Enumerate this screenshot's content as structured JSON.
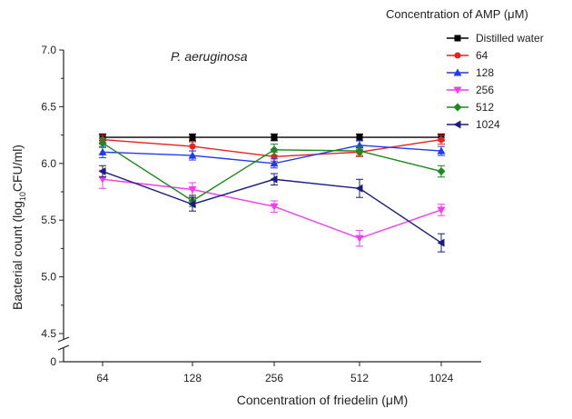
{
  "chart_data": {
    "type": "line",
    "title": "",
    "annotation": "P. aeruginosa",
    "xlabel": "Concentration of friedelin (μM)",
    "ylabel_main": "Bacterial count (log",
    "ylabel_sub": "10",
    "ylabel_end": "CFU/ml)",
    "categories": [
      "64",
      "128",
      "256",
      "512",
      "1024"
    ],
    "y_ticks": [
      "0",
      "4.5",
      "5.0",
      "5.5",
      "6.0",
      "6.5",
      "7.0"
    ],
    "ylim": [
      4.5,
      7.0
    ],
    "y_axis_break": true,
    "legend_title": "Concentration of AMP (μM)",
    "legend_position": "top-right",
    "series": [
      {
        "name": "Distilled water",
        "marker": "square",
        "color": "#000000",
        "values": [
          6.23,
          6.23,
          6.23,
          6.23,
          6.23
        ],
        "errors": [
          0.03,
          0.03,
          0.03,
          0.03,
          0.03
        ]
      },
      {
        "name": "64",
        "marker": "circle",
        "color": "#e8201e",
        "values": [
          6.21,
          6.15,
          6.06,
          6.1,
          6.21
        ],
        "errors": [
          0.04,
          0.04,
          0.04,
          0.04,
          0.04
        ]
      },
      {
        "name": "128",
        "marker": "triangle-up",
        "color": "#1f3cf0",
        "values": [
          6.1,
          6.07,
          6.0,
          6.16,
          6.11
        ],
        "errors": [
          0.05,
          0.04,
          0.04,
          0.04,
          0.04
        ]
      },
      {
        "name": "256",
        "marker": "triangle-down",
        "color": "#f23df2",
        "values": [
          5.86,
          5.77,
          5.62,
          5.34,
          5.59
        ],
        "errors": [
          0.08,
          0.06,
          0.05,
          0.07,
          0.05
        ]
      },
      {
        "name": "512",
        "marker": "diamond",
        "color": "#1c8a1c",
        "values": [
          6.18,
          5.67,
          6.12,
          6.11,
          5.93
        ],
        "errors": [
          0.04,
          0.05,
          0.05,
          0.04,
          0.05
        ]
      },
      {
        "name": "1024",
        "marker": "triangle-left",
        "color": "#1c1c80",
        "values": [
          5.93,
          5.64,
          5.86,
          5.78,
          5.3
        ],
        "errors": [
          0.05,
          0.06,
          0.05,
          0.08,
          0.08
        ]
      }
    ]
  }
}
